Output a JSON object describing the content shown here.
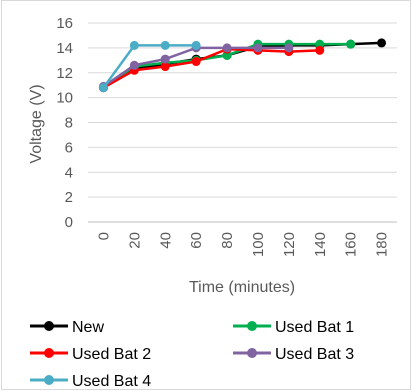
{
  "chart_data": {
    "type": "line",
    "title": "",
    "xlabel": "Time (minutes)",
    "ylabel": "Voltage (V)",
    "x": [
      0,
      20,
      40,
      60,
      80,
      100,
      120,
      140,
      160,
      180
    ],
    "x_tick_labels": [
      "0",
      "20",
      "40",
      "60",
      "80",
      "100",
      "120",
      "140",
      "160",
      "180"
    ],
    "y_tick_labels": [
      "0",
      "2",
      "4",
      "6",
      "8",
      "10",
      "12",
      "14",
      "16"
    ],
    "ylim": [
      0,
      16
    ],
    "grid": "horizontal",
    "legend_position": "bottom",
    "series": [
      {
        "name": "New",
        "color": "#000000",
        "x": [
          0,
          20,
          40,
          60,
          80,
          100,
          120,
          140,
          160,
          180
        ],
        "values": [
          10.8,
          12.3,
          12.7,
          13.1,
          13.4,
          14.1,
          14.2,
          14.2,
          14.3,
          14.4
        ]
      },
      {
        "name": "Used Bat 1",
        "color": "#00b050",
        "x": [
          0,
          20,
          40,
          60,
          80,
          100,
          120,
          140,
          160
        ],
        "values": [
          10.8,
          12.5,
          12.8,
          13.0,
          13.4,
          14.3,
          14.3,
          14.3,
          14.3
        ]
      },
      {
        "name": "Used Bat 2",
        "color": "#ff0000",
        "x": [
          0,
          20,
          40,
          60,
          80,
          100,
          120,
          140
        ],
        "values": [
          10.8,
          12.2,
          12.5,
          12.9,
          13.9,
          13.8,
          13.7,
          13.8
        ]
      },
      {
        "name": "Used Bat 3",
        "color": "#8064a2",
        "x": [
          0,
          20,
          40,
          60,
          80,
          100,
          120
        ],
        "values": [
          10.9,
          12.6,
          13.1,
          14.0,
          14.0,
          14.0,
          14.0
        ]
      },
      {
        "name": "Used Bat 4",
        "color": "#4bacc6",
        "x": [
          0,
          20,
          40,
          60
        ],
        "values": [
          10.8,
          14.2,
          14.2,
          14.2
        ]
      }
    ]
  }
}
